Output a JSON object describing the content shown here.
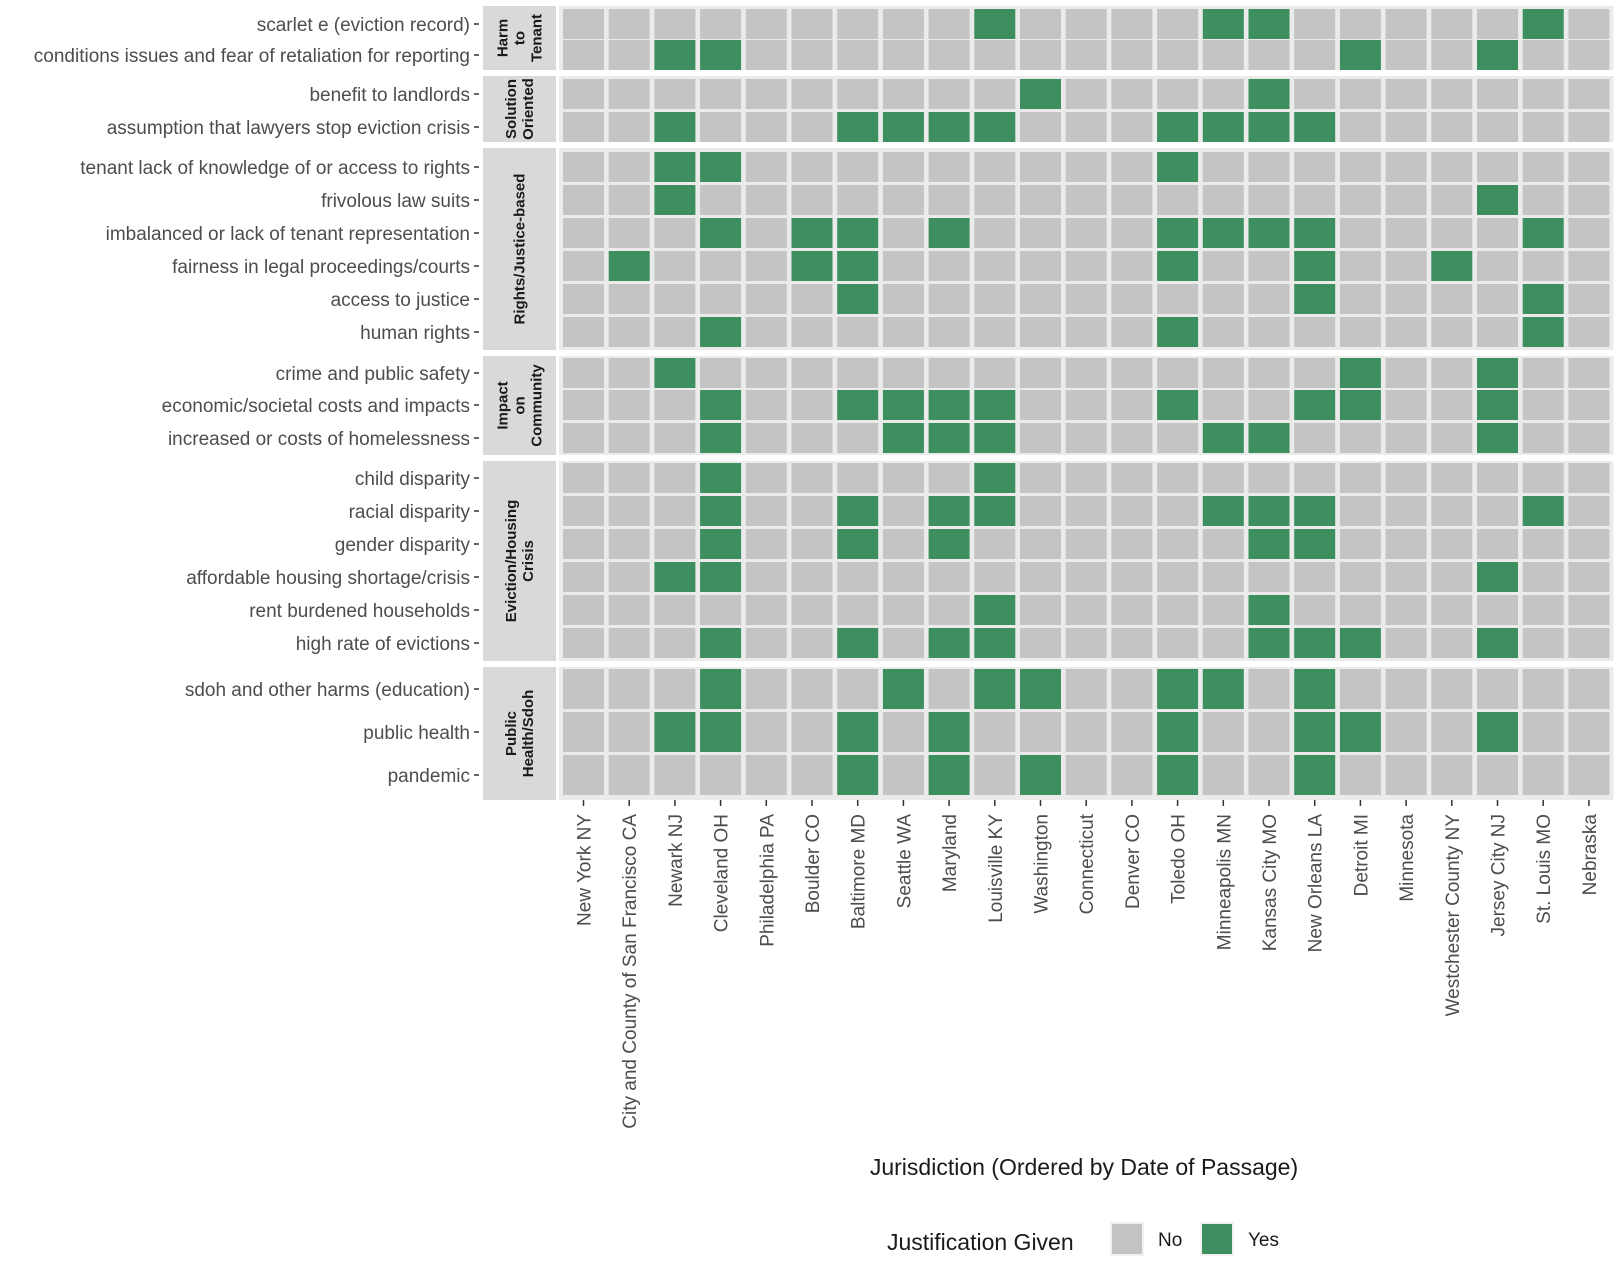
{
  "chart_data": {
    "type": "heatmap",
    "title": "",
    "xlabel": "Jurisdiction (Ordered by Date of Passage)",
    "ylabel": "",
    "colors": {
      "No": "#c4c4c4",
      "Yes": "#3d8f60",
      "strip": "#d9d9d9"
    },
    "legend": {
      "title": "Justification Given",
      "position": "bottom",
      "entries": [
        {
          "label": "No",
          "value": 0
        },
        {
          "label": "Yes",
          "value": 1
        }
      ]
    },
    "columns": [
      "New York NY",
      "City and County of San Francisco CA",
      "Newark NJ",
      "Cleveland OH",
      "Philadelphia PA",
      "Boulder CO",
      "Baltimore MD",
      "Seattle WA",
      "Maryland",
      "Louisville KY",
      "Washington",
      "Connecticut",
      "Denver CO",
      "Toledo OH",
      "Minneapolis MN",
      "Kansas City MO",
      "New Orleans LA",
      "Detroit MI",
      "Minnesota",
      "Westchester County NY",
      "Jersey City NJ",
      "St. Louis MO",
      "Nebraska"
    ],
    "groups": [
      {
        "name": "Harm to Tenant",
        "strip_lines": [
          "Harm",
          "to",
          "Tenant"
        ],
        "rows": [
          {
            "label": "scarlet e (eviction record)",
            "values": [
              0,
              0,
              0,
              0,
              0,
              0,
              0,
              0,
              0,
              1,
              0,
              0,
              0,
              0,
              1,
              1,
              0,
              0,
              0,
              0,
              0,
              1,
              0
            ]
          },
          {
            "label": "conditions issues and fear of retaliation for reporting",
            "values": [
              0,
              0,
              1,
              1,
              0,
              0,
              0,
              0,
              0,
              0,
              0,
              0,
              0,
              0,
              0,
              0,
              0,
              1,
              0,
              0,
              1,
              0,
              0
            ]
          }
        ]
      },
      {
        "name": "Solution Oriented",
        "strip_lines": [
          "Solution",
          "Oriented"
        ],
        "rows": [
          {
            "label": "benefit to landlords",
            "values": [
              0,
              0,
              0,
              0,
              0,
              0,
              0,
              0,
              0,
              0,
              1,
              0,
              0,
              0,
              0,
              1,
              0,
              0,
              0,
              0,
              0,
              0,
              0
            ]
          },
          {
            "label": "assumption that lawyers stop eviction crisis",
            "values": [
              0,
              0,
              1,
              0,
              0,
              0,
              1,
              1,
              1,
              1,
              0,
              0,
              0,
              1,
              1,
              1,
              1,
              0,
              0,
              0,
              0,
              0,
              0
            ]
          }
        ]
      },
      {
        "name": "Rights/Justice-based",
        "strip_lines": [
          "Rights/Justice-based"
        ],
        "rows": [
          {
            "label": "tenant lack of knowledge of or access to rights",
            "values": [
              0,
              0,
              1,
              1,
              0,
              0,
              0,
              0,
              0,
              0,
              0,
              0,
              0,
              1,
              0,
              0,
              0,
              0,
              0,
              0,
              0,
              0,
              0
            ]
          },
          {
            "label": "frivolous law suits",
            "values": [
              0,
              0,
              1,
              0,
              0,
              0,
              0,
              0,
              0,
              0,
              0,
              0,
              0,
              0,
              0,
              0,
              0,
              0,
              0,
              0,
              1,
              0,
              0
            ]
          },
          {
            "label": "imbalanced or lack of tenant representation",
            "values": [
              0,
              0,
              0,
              1,
              0,
              1,
              1,
              0,
              1,
              0,
              0,
              0,
              0,
              1,
              1,
              1,
              1,
              0,
              0,
              0,
              0,
              1,
              0
            ]
          },
          {
            "label": "fairness in legal proceedings/courts",
            "values": [
              0,
              1,
              0,
              0,
              0,
              1,
              1,
              0,
              0,
              0,
              0,
              0,
              0,
              1,
              0,
              0,
              1,
              0,
              0,
              1,
              0,
              0,
              0
            ]
          },
          {
            "label": "access to justice",
            "values": [
              0,
              0,
              0,
              0,
              0,
              0,
              1,
              0,
              0,
              0,
              0,
              0,
              0,
              0,
              0,
              0,
              1,
              0,
              0,
              0,
              0,
              1,
              0
            ]
          },
          {
            "label": "human rights",
            "values": [
              0,
              0,
              0,
              1,
              0,
              0,
              0,
              0,
              0,
              0,
              0,
              0,
              0,
              1,
              0,
              0,
              0,
              0,
              0,
              0,
              0,
              1,
              0
            ]
          }
        ]
      },
      {
        "name": "Impact on Community",
        "strip_lines": [
          "Impact",
          "on",
          "Community"
        ],
        "rows": [
          {
            "label": "crime and public safety",
            "values": [
              0,
              0,
              1,
              0,
              0,
              0,
              0,
              0,
              0,
              0,
              0,
              0,
              0,
              0,
              0,
              0,
              0,
              1,
              0,
              0,
              1,
              0,
              0
            ]
          },
          {
            "label": "economic/societal costs and impacts",
            "values": [
              0,
              0,
              0,
              1,
              0,
              0,
              1,
              1,
              1,
              1,
              0,
              0,
              0,
              1,
              0,
              0,
              1,
              1,
              0,
              0,
              1,
              0,
              0
            ]
          },
          {
            "label": "increased or costs of homelessness",
            "values": [
              0,
              0,
              0,
              1,
              0,
              0,
              0,
              1,
              1,
              1,
              0,
              0,
              0,
              0,
              1,
              1,
              0,
              0,
              0,
              0,
              1,
              0,
              0
            ]
          }
        ]
      },
      {
        "name": "Eviction/Housing Crisis",
        "strip_lines": [
          "Eviction/Housing",
          "Crisis"
        ],
        "rows": [
          {
            "label": "child disparity",
            "values": [
              0,
              0,
              0,
              1,
              0,
              0,
              0,
              0,
              0,
              1,
              0,
              0,
              0,
              0,
              0,
              0,
              0,
              0,
              0,
              0,
              0,
              0,
              0
            ]
          },
          {
            "label": "racial disparity",
            "values": [
              0,
              0,
              0,
              1,
              0,
              0,
              1,
              0,
              1,
              1,
              0,
              0,
              0,
              0,
              1,
              1,
              1,
              0,
              0,
              0,
              0,
              1,
              0
            ]
          },
          {
            "label": "gender disparity",
            "values": [
              0,
              0,
              0,
              1,
              0,
              0,
              1,
              0,
              1,
              0,
              0,
              0,
              0,
              0,
              0,
              1,
              1,
              0,
              0,
              0,
              0,
              0,
              0
            ]
          },
          {
            "label": "affordable housing shortage/crisis",
            "values": [
              0,
              0,
              1,
              1,
              0,
              0,
              0,
              0,
              0,
              0,
              0,
              0,
              0,
              0,
              0,
              0,
              0,
              0,
              0,
              0,
              1,
              0,
              0
            ]
          },
          {
            "label": "rent burdened households",
            "values": [
              0,
              0,
              0,
              0,
              0,
              0,
              0,
              0,
              0,
              1,
              0,
              0,
              0,
              0,
              0,
              1,
              0,
              0,
              0,
              0,
              0,
              0,
              0
            ]
          },
          {
            "label": "high rate of evictions",
            "values": [
              0,
              0,
              0,
              1,
              0,
              0,
              1,
              0,
              1,
              1,
              0,
              0,
              0,
              0,
              0,
              1,
              1,
              1,
              0,
              0,
              1,
              0,
              0
            ]
          }
        ]
      },
      {
        "name": "Public Health/Sdoh",
        "strip_lines": [
          "Public",
          "Health/Sdoh"
        ],
        "rows": [
          {
            "label": "sdoh and other harms (education)",
            "values": [
              0,
              0,
              0,
              1,
              0,
              0,
              0,
              1,
              0,
              1,
              1,
              0,
              0,
              1,
              1,
              0,
              1,
              0,
              0,
              0,
              0,
              0,
              0
            ]
          },
          {
            "label": "public health",
            "values": [
              0,
              0,
              1,
              1,
              0,
              0,
              1,
              0,
              1,
              0,
              0,
              0,
              0,
              1,
              0,
              0,
              1,
              1,
              0,
              0,
              1,
              0,
              0
            ]
          },
          {
            "label": "pandemic",
            "values": [
              0,
              0,
              0,
              0,
              0,
              0,
              1,
              0,
              1,
              0,
              1,
              0,
              0,
              1,
              0,
              0,
              1,
              0,
              0,
              0,
              0,
              0,
              0
            ]
          }
        ]
      }
    ]
  }
}
